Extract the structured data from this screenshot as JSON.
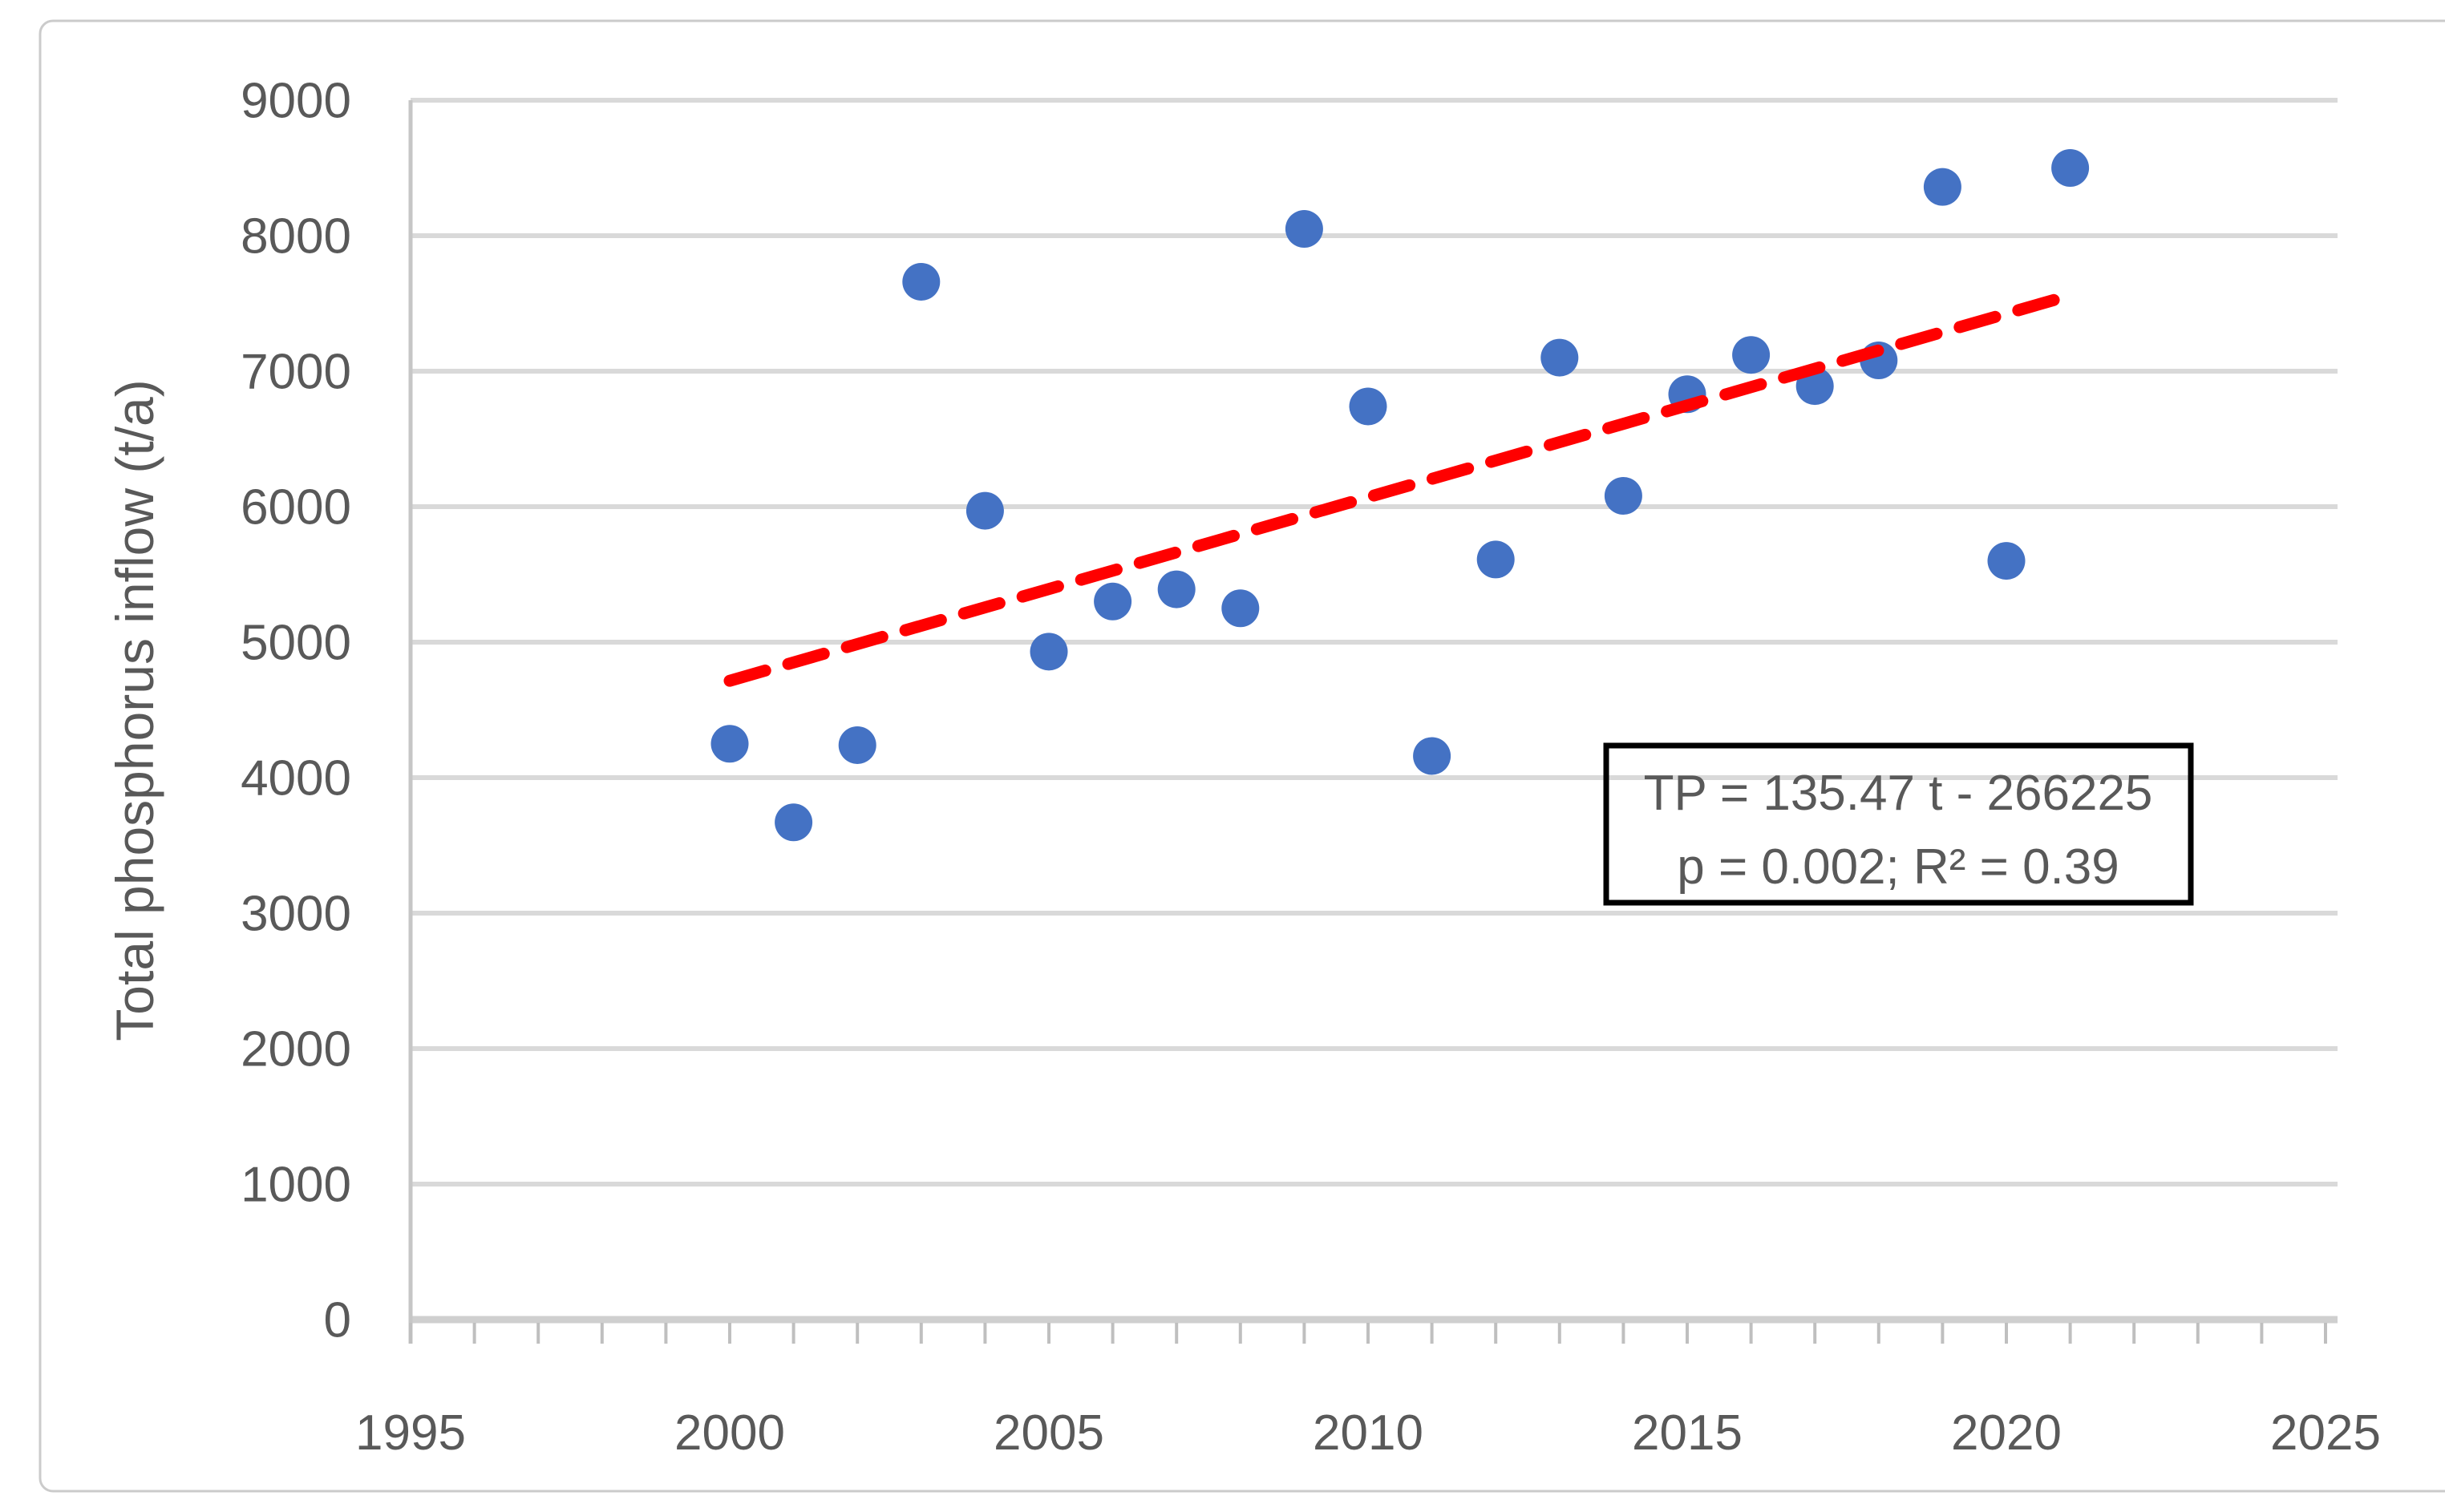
{
  "chart_data": {
    "type": "scatter",
    "title": "",
    "xlabel": "",
    "ylabel": "Total phosphorus inflow (t/a)",
    "x_axis": {
      "min": 1995,
      "max": 2025,
      "major_tick_step": 5,
      "minor_tick_step": 1,
      "tick_labels": [
        "1995",
        "2000",
        "2005",
        "2010",
        "2015",
        "2020",
        "2025"
      ]
    },
    "y_axis": {
      "min": 0,
      "max": 9000,
      "tick_step": 1000,
      "tick_labels": [
        "0",
        "1000",
        "2000",
        "3000",
        "4000",
        "5000",
        "6000",
        "7000",
        "8000",
        "9000"
      ]
    },
    "grid": "horizontal",
    "legend": "none",
    "series": [
      {
        "name": "Total phosphorus inflow",
        "marker": "circle",
        "color": "#4472C4",
        "points": [
          [
            2000,
            4250
          ],
          [
            2001,
            3670
          ],
          [
            2002,
            4240
          ],
          [
            2003,
            7660
          ],
          [
            2004,
            5970
          ],
          [
            2005,
            4930
          ],
          [
            2006,
            5300
          ],
          [
            2007,
            5390
          ],
          [
            2008,
            5250
          ],
          [
            2009,
            8050
          ],
          [
            2010,
            6740
          ],
          [
            2011,
            4160
          ],
          [
            2012,
            5610
          ],
          [
            2013,
            7100
          ],
          [
            2014,
            6080
          ],
          [
            2015,
            6830
          ],
          [
            2016,
            7120
          ],
          [
            2017,
            6890
          ],
          [
            2018,
            7080
          ],
          [
            2019,
            8360
          ],
          [
            2020,
            5600
          ],
          [
            2021,
            8500
          ]
        ]
      }
    ],
    "trendline": {
      "type": "linear",
      "slope": 135.47,
      "intercept": -266225,
      "x_start": 2000,
      "x_end": 2021.1,
      "color": "#FF0000",
      "style": "dashed"
    },
    "annotation": {
      "line1": "TP = 135.47 t - 266225",
      "line2": "p = 0.002; R² = 0.39"
    },
    "colors": {
      "marker": "#4472C4",
      "trend": "#FF0000",
      "gridline": "#D9D9D9",
      "axis_line": "#BFBFBF",
      "label_text": "#595959",
      "annotation_border": "#000000",
      "outer_border": "#CBCBCB"
    }
  }
}
